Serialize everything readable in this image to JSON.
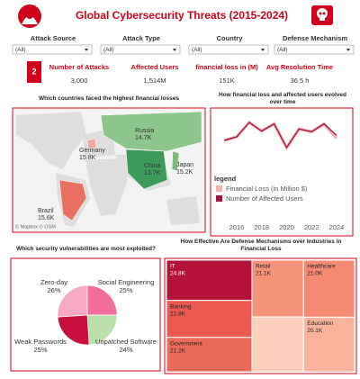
{
  "header": {
    "title": "Global Cybersecurity Threats (2015-2024)"
  },
  "filters": [
    {
      "label": "Attack Source",
      "value": "(All)"
    },
    {
      "label": "Attack Type",
      "value": "(All)"
    },
    {
      "label": "Country",
      "value": "(All)"
    },
    {
      "label": "Defense Mechanism",
      "value": "(All)"
    }
  ],
  "kpis": {
    "badge": "2",
    "items": [
      {
        "label": "Number of Attacks",
        "value": "3,000"
      },
      {
        "label": "Affected Users",
        "value": "1,514M"
      },
      {
        "label": "financial loss in (M)",
        "value": "151K"
      },
      {
        "label": "Avg Resolution Time",
        "value": "36.5 h"
      }
    ]
  },
  "chart_data": [
    {
      "type": "map",
      "title": "Which countries faced the highest financial losses",
      "categories": [
        "Russia",
        "Germany",
        "China",
        "Japan",
        "Brazil"
      ],
      "values": [
        14700,
        15800,
        13700,
        15200,
        15600
      ],
      "value_labels": [
        "14.7K",
        "15.8K",
        "13.7K",
        "15.2K",
        "15.6K"
      ],
      "colors": [
        "#8cc68a",
        "#f2a7a0",
        "#3e9a58",
        "#7dbb7d",
        "#e8705f"
      ],
      "attribution": "© Mapbox © OSM"
    },
    {
      "type": "line",
      "title": "How financial loss and affected users evolved over time",
      "x": [
        2015,
        2016,
        2017,
        2018,
        2019,
        2020,
        2021,
        2022,
        2023,
        2024
      ],
      "xlim": [
        2014.7,
        2024.8
      ],
      "xticks": [
        2016,
        2018,
        2020,
        2022,
        2024
      ],
      "ylim": [
        11000,
        17500
      ],
      "y2lim": [
        110,
        175
      ],
      "legend_title": "legend",
      "series": [
        {
          "name": "Financial Loss (in Million $)",
          "color": "#f4b3b3",
          "values": [
            14000,
            14500,
            16500,
            15300,
            16300,
            13000,
            15600,
            15200,
            16300,
            14300
          ]
        },
        {
          "name": "Number of Affected Users",
          "color": "#a50f3c",
          "axis": "y2",
          "values": [
            140,
            145,
            165,
            153,
            163,
            130,
            156,
            152,
            163,
            147
          ]
        }
      ]
    },
    {
      "type": "pie",
      "title": "Which security vulnerabilities are most exploited?",
      "categories": [
        "Social Engineering",
        "Unpatched Software",
        "Weak Passwords",
        "Zero-day"
      ],
      "values": [
        25,
        24,
        25,
        26
      ],
      "value_labels": [
        "25%",
        "24%",
        "25%",
        "26%"
      ],
      "colors": [
        "#f06d9c",
        "#b8e0a8",
        "#c8103c",
        "#f9a8c6"
      ]
    },
    {
      "type": "treemap",
      "title": "How Effective Are Defense Mechanisms over Industries in Financial Loss",
      "categories": [
        "IT",
        "Banking",
        "Government",
        "Retail",
        null,
        "Healthcare",
        "Education"
      ],
      "values": [
        24800,
        22800,
        21200,
        21100,
        20400,
        21000,
        20100
      ],
      "value_labels": [
        "24.8K",
        "22.8K",
        "21.2K",
        "21.1K",
        null,
        "21.0K",
        "20.1K"
      ],
      "colors": [
        "#b5123a",
        "#ea5a4f",
        "#ec6a58",
        "#f5937a",
        "#fccfbd",
        "#f48a72",
        "#fbb49b"
      ]
    }
  ]
}
